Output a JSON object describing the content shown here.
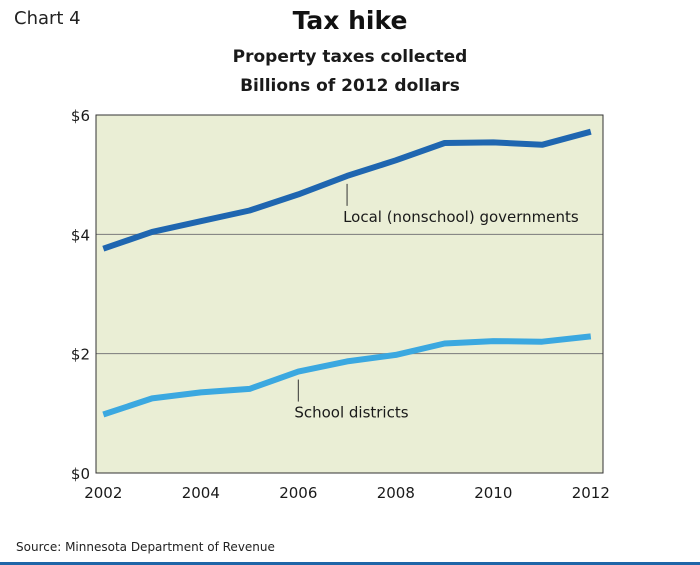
{
  "header": {
    "chart_label": "Chart 4",
    "title": "Tax hike",
    "subtitle_1": "Property taxes collected",
    "subtitle_2": "Billions of 2012 dollars"
  },
  "source": "Source: Minnesota Department of Revenue",
  "colors": {
    "plot_background": "#eaeed5",
    "local_series": "#1f66b0",
    "school_series": "#3ba8e0",
    "gridline": "#7a7a7a"
  },
  "chart_data": {
    "type": "line",
    "title": "Tax hike",
    "subtitle": "Property taxes collected, Billions of 2012 dollars",
    "xlabel": "",
    "ylabel": "",
    "xlim": [
      2001.85,
      2012.25
    ],
    "ylim": [
      0,
      6
    ],
    "y_ticks": [
      0,
      2,
      4,
      6
    ],
    "y_tick_labels": [
      "$0",
      "$2",
      "$4",
      "$6"
    ],
    "x_ticks": [
      2002,
      2004,
      2006,
      2008,
      2010,
      2012
    ],
    "x_tick_labels": [
      "2002",
      "2004",
      "2006",
      "2008",
      "2010",
      "2012"
    ],
    "grid": "horizontal",
    "x": [
      2002,
      2003,
      2004,
      2005,
      2006,
      2007,
      2008,
      2009,
      2010,
      2011,
      2012
    ],
    "series": [
      {
        "name": "Local (nonschool) governments",
        "values": [
          3.76,
          4.04,
          4.22,
          4.4,
          4.67,
          4.98,
          5.24,
          5.53,
          5.54,
          5.5,
          5.72
        ],
        "label_anchor_x": 2007
      },
      {
        "name": "School districts",
        "values": [
          0.98,
          1.25,
          1.35,
          1.41,
          1.7,
          1.87,
          1.98,
          2.17,
          2.21,
          2.2,
          2.29
        ],
        "label_anchor_x": 2006
      }
    ]
  }
}
